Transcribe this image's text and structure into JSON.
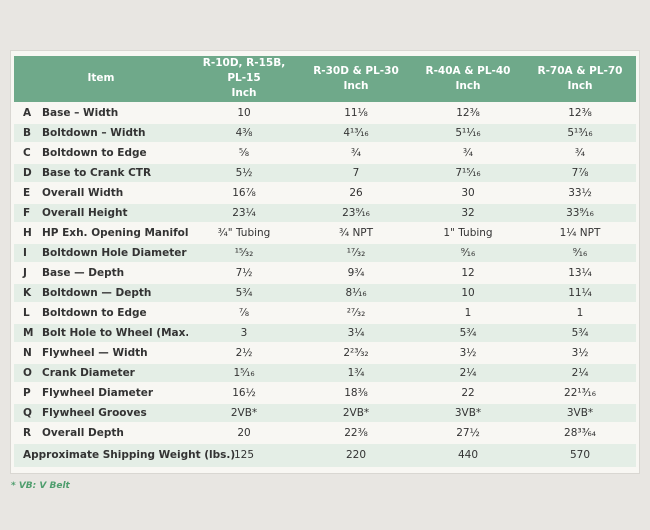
{
  "colors": {
    "page_bg": "#e8e6e2",
    "card_bg": "#f8f7f3",
    "header_bg": "#6fa98a",
    "row_tint": "#e4eee6",
    "text": "#333333",
    "note_green": "#4f9e6e",
    "header_text": "#ffffff",
    "card_border": "#d9d7d2"
  },
  "note": "* VB: V Belt",
  "table": {
    "header": {
      "item_label": "Item",
      "columns": [
        {
          "line1": "R-10D, R-15B, PL-15",
          "line2": "Inch"
        },
        {
          "line1": "R-30D & PL-30",
          "line2": "Inch"
        },
        {
          "line1": "R-40A & PL-40",
          "line2": "Inch"
        },
        {
          "line1": "R-70A & PL-70",
          "line2": "Inch"
        }
      ]
    },
    "rows": [
      {
        "letter": "A",
        "item": "Base – Width",
        "values": [
          "10",
          "11⅛",
          "12⅜",
          "12⅜"
        ]
      },
      {
        "letter": "B",
        "item": "Boltdown – Width",
        "values": [
          "4⅜",
          "4¹³⁄₁₆",
          "5¹¹⁄₁₆",
          "5¹³⁄₁₆"
        ]
      },
      {
        "letter": "C",
        "item": "Boltdown to Edge",
        "values": [
          "⅝",
          "¾",
          "¾",
          "¾"
        ]
      },
      {
        "letter": "D",
        "item": "Base to Crank CTR",
        "values": [
          "5½",
          "7",
          "7¹⁵⁄₁₆",
          "7⅞"
        ]
      },
      {
        "letter": "E",
        "item": "Overall Width",
        "values": [
          "16⅞",
          "26",
          "30",
          "33½"
        ]
      },
      {
        "letter": "F",
        "item": "Overall Height",
        "values": [
          "23¼",
          "23⁹⁄₁₆",
          "32",
          "33⁹⁄₁₆"
        ]
      },
      {
        "letter": "H",
        "item": "HP Exh. Opening Manifold",
        "values": [
          "¾\" Tubing",
          "¾ NPT",
          "1\" Tubing",
          "1¼ NPT"
        ]
      },
      {
        "letter": "I",
        "item": "Boltdown Hole Diameter",
        "values": [
          "¹⁵⁄₃₂",
          "¹⁷⁄₃₂",
          "⁹⁄₁₆",
          "⁹⁄₁₆"
        ]
      },
      {
        "letter": "J",
        "item": "Base — Depth",
        "values": [
          "7½",
          "9¾",
          "12",
          "13¼"
        ]
      },
      {
        "letter": "K",
        "item": "Boltdown — Depth",
        "values": [
          "5¾",
          "8¹⁄₁₆",
          "10",
          "11¼"
        ]
      },
      {
        "letter": "L",
        "item": "Boltdown to Edge",
        "values": [
          "⅞",
          "²⁷⁄₃₂",
          "1",
          "1"
        ]
      },
      {
        "letter": "M",
        "item": "Bolt Hole to Wheel (Max.)",
        "values": [
          "3",
          "3¼",
          "5¾",
          "5¾"
        ]
      },
      {
        "letter": "N",
        "item": "Flywheel — Width",
        "values": [
          "2½",
          "2²³⁄₃₂",
          "3½",
          "3½"
        ]
      },
      {
        "letter": "O",
        "item": "Crank Diameter",
        "values": [
          "1⁵⁄₁₆",
          "1¾",
          "2¼",
          "2¼"
        ]
      },
      {
        "letter": "P",
        "item": "Flywheel Diameter",
        "values": [
          "16½",
          "18⅜",
          "22",
          "22¹³⁄₁₆"
        ]
      },
      {
        "letter": "Q",
        "item": "Flywheel Grooves",
        "values": [
          "2VB*",
          "2VB*",
          "3VB*",
          "3VB*"
        ]
      },
      {
        "letter": "R",
        "item": "Overall Depth",
        "values": [
          "20",
          "22⅜",
          "27½",
          "28³³⁄₆₄"
        ]
      }
    ],
    "footer_row": {
      "label": "Approximate Shipping Weight (lbs.)",
      "values": [
        "125",
        "220",
        "440",
        "570"
      ]
    }
  }
}
